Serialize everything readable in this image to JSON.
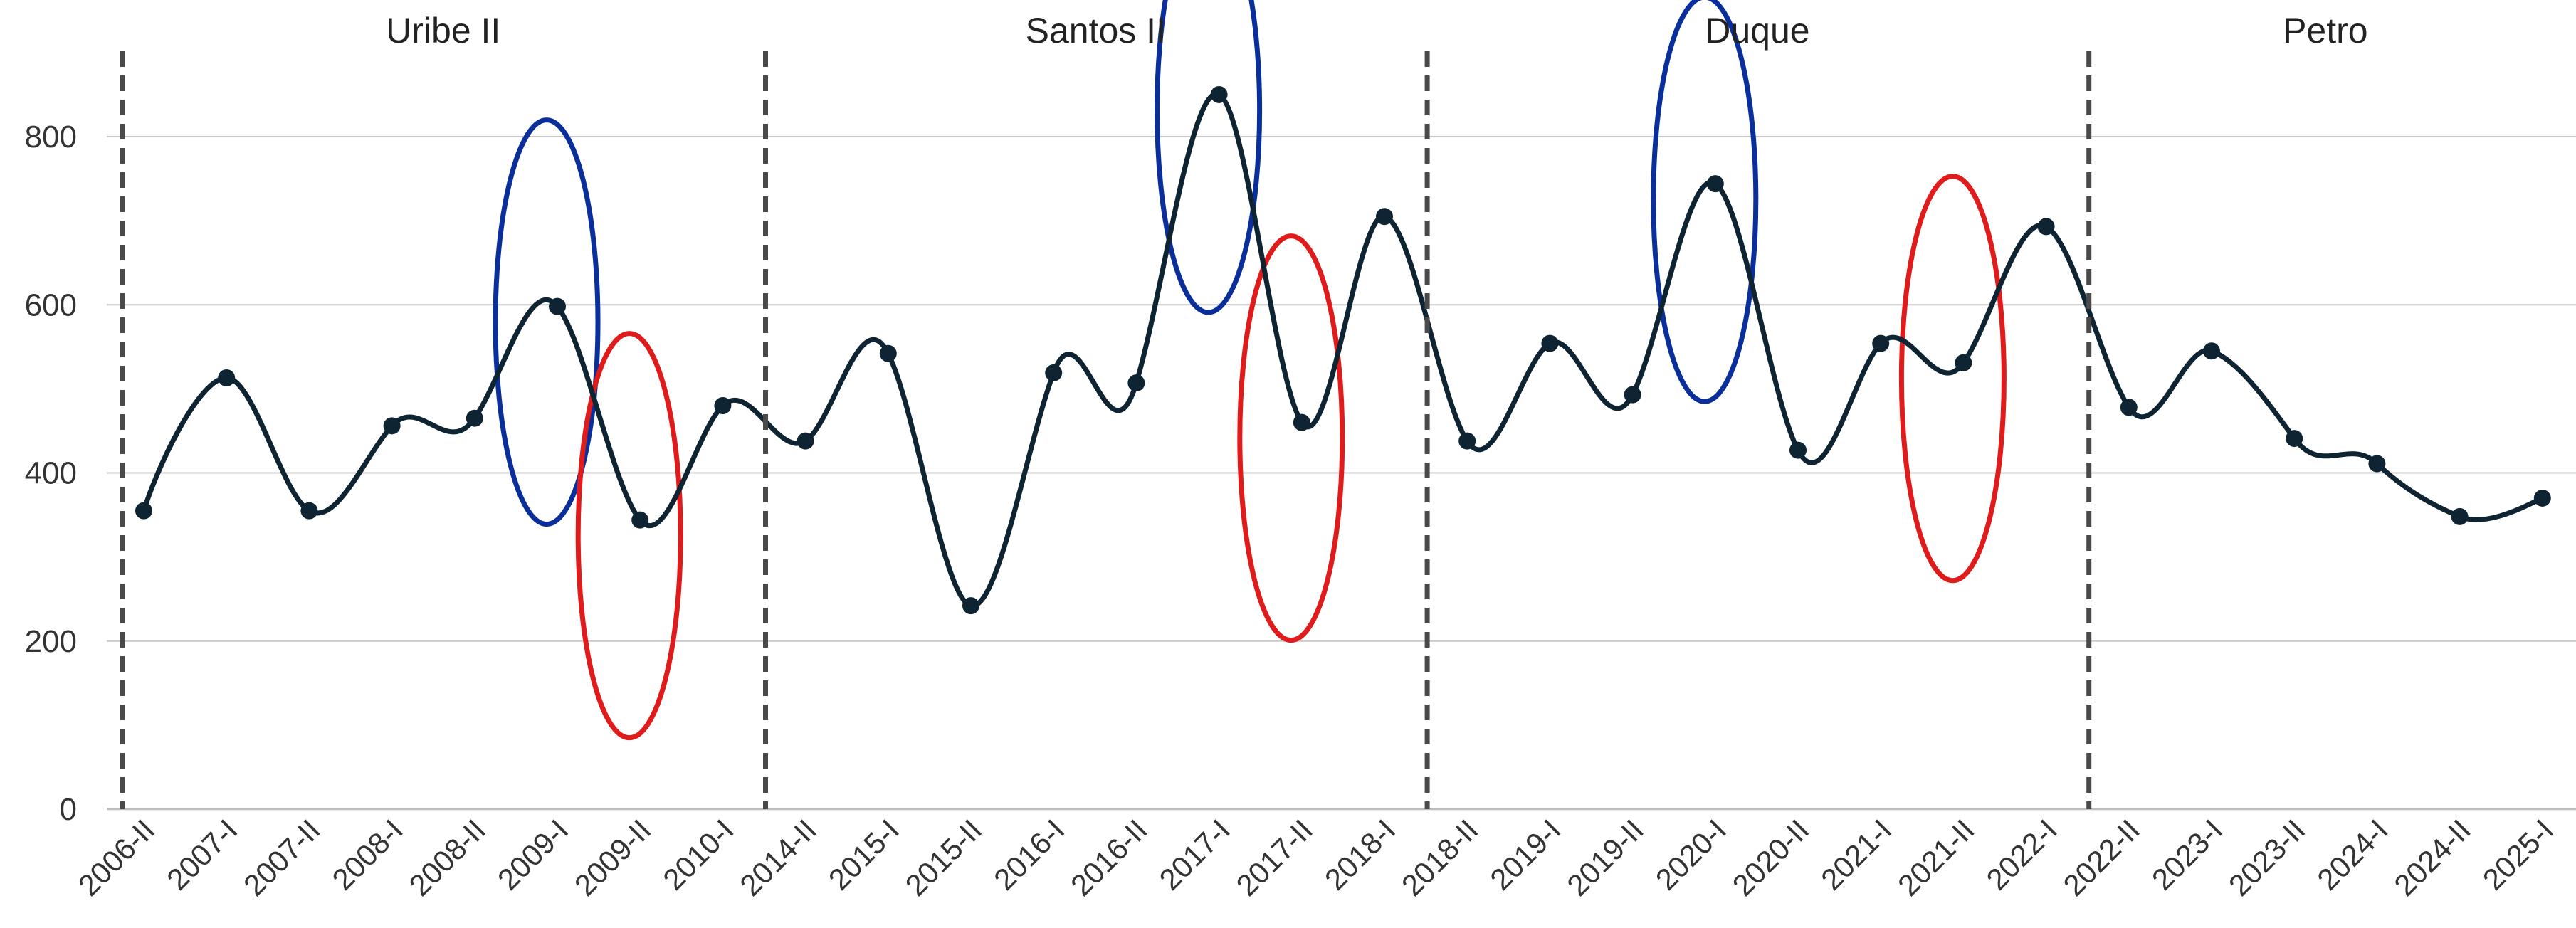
{
  "chart_data": {
    "type": "line",
    "title": "",
    "xlabel": "",
    "ylabel": "",
    "ylim": [
      0,
      900
    ],
    "yticks": [
      0,
      200,
      400,
      600,
      800
    ],
    "grid": "horizontal",
    "line_color": "#0e2433",
    "categories": [
      "2006-II",
      "2007-I",
      "2007-II",
      "2008-I",
      "2008-II",
      "2009-I",
      "2009-II",
      "2010-I",
      "2014-II",
      "2015-I",
      "2015-II",
      "2016-I",
      "2016-II",
      "2017-I",
      "2017-II",
      "2018-I",
      "2018-II",
      "2019-I",
      "2019-II",
      "2020-I",
      "2020-II",
      "2021-I",
      "2021-II",
      "2022-I",
      "2022-II",
      "2023-I",
      "2023-II",
      "2024-I",
      "2024-II",
      "2025-I"
    ],
    "values": [
      355,
      513,
      355,
      456,
      465,
      598,
      344,
      480,
      438,
      542,
      242,
      519,
      507,
      850,
      460,
      705,
      438,
      554,
      493,
      744,
      427,
      554,
      531,
      693,
      478,
      545,
      441,
      411,
      348,
      370
    ],
    "periods": [
      {
        "label": "Uribe II",
        "start_index": 0,
        "end_index": 7
      },
      {
        "label": "Santos II",
        "start_index": 8,
        "end_index": 15
      },
      {
        "label": "Duque",
        "start_index": 16,
        "end_index": 23
      },
      {
        "label": "Petro",
        "start_index": 24,
        "end_index": 29
      }
    ],
    "highlights": [
      {
        "index": 5,
        "color": "#0a2f9a"
      },
      {
        "index": 6,
        "color": "#e01b1b"
      },
      {
        "index": 13,
        "color": "#0a2f9a"
      },
      {
        "index": 14,
        "color": "#e01b1b"
      },
      {
        "index": 19,
        "color": "#0a2f9a"
      },
      {
        "index": 22,
        "color": "#e01b1b"
      }
    ]
  }
}
